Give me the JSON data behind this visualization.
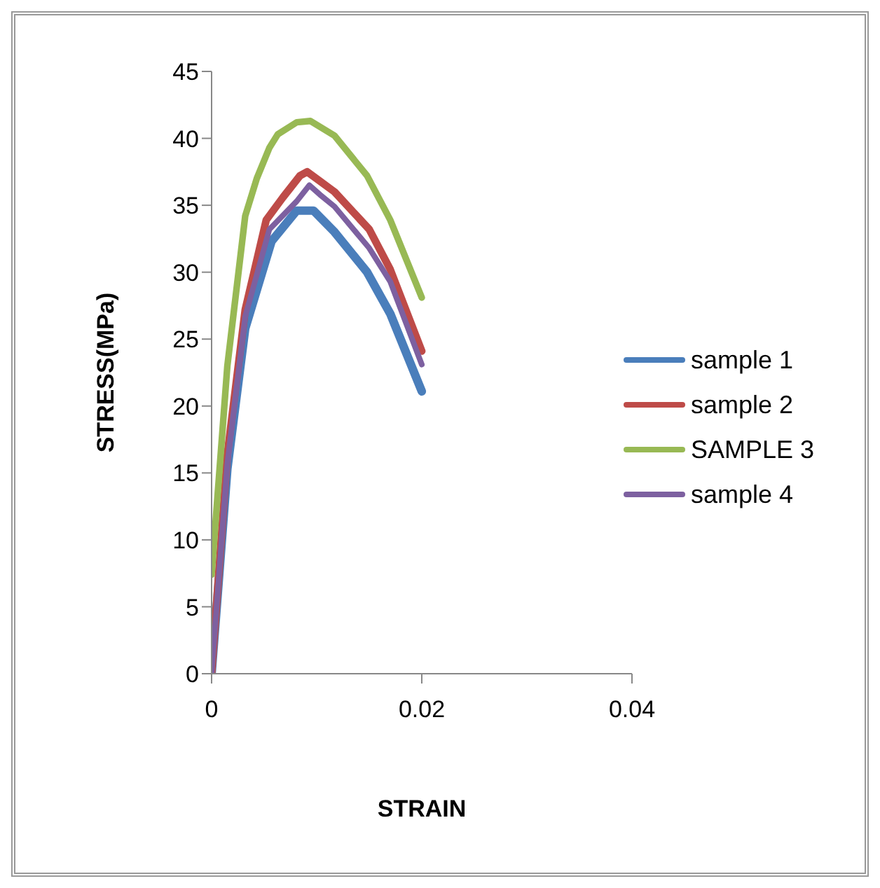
{
  "chart_data": {
    "type": "line",
    "xlabel": "STRAIN",
    "ylabel": "STRESS(MPa)",
    "xlim": [
      0,
      0.04
    ],
    "xticks": [
      0,
      0.02,
      0.04
    ],
    "ylim": [
      0,
      45
    ],
    "yticks": [
      0,
      5,
      10,
      15,
      20,
      25,
      30,
      35,
      40,
      45
    ],
    "grid": false,
    "legend": "right",
    "marker": "none",
    "line_style": "solid",
    "series": [
      {
        "name": "sample 1",
        "color": "#4a7ebb",
        "x": [
          0,
          0.0015,
          0.0032,
          0.0057,
          0.0081,
          0.0097,
          0.0117,
          0.0148,
          0.017,
          0.02
        ],
        "values": [
          0,
          15.3,
          25.8,
          32.3,
          34.6,
          34.6,
          33,
          30,
          26.9,
          21.1
        ]
      },
      {
        "name": "sample 2",
        "color": "#be4b48",
        "x": [
          0,
          0.0015,
          0.0032,
          0.0052,
          0.0068,
          0.0084,
          0.0091,
          0.0117,
          0.015,
          0.017,
          0.02
        ],
        "values": [
          0,
          16.4,
          27.2,
          33.9,
          35.6,
          37.2,
          37.5,
          36,
          33.2,
          30.2,
          24.1
        ]
      },
      {
        "name": "SAMPLE 3",
        "color": "#98b954",
        "x": [
          0,
          0.0015,
          0.0032,
          0.0043,
          0.0055,
          0.0063,
          0.0081,
          0.0094,
          0.0117,
          0.0148,
          0.017,
          0.02
        ],
        "values": [
          7.4,
          23,
          34.2,
          37,
          39.3,
          40.3,
          41.2,
          41.3,
          40.2,
          37.2,
          33.9,
          28.1
        ]
      },
      {
        "name": "sample 4",
        "color": "#7d60a0",
        "x": [
          0,
          0.0015,
          0.0032,
          0.0055,
          0.0081,
          0.0093,
          0.0103,
          0.0117,
          0.015,
          0.017,
          0.02
        ],
        "values": [
          0,
          15.7,
          26.7,
          33.2,
          35.3,
          36.5,
          35.8,
          34.9,
          31.8,
          29.3,
          23.1
        ]
      }
    ]
  }
}
